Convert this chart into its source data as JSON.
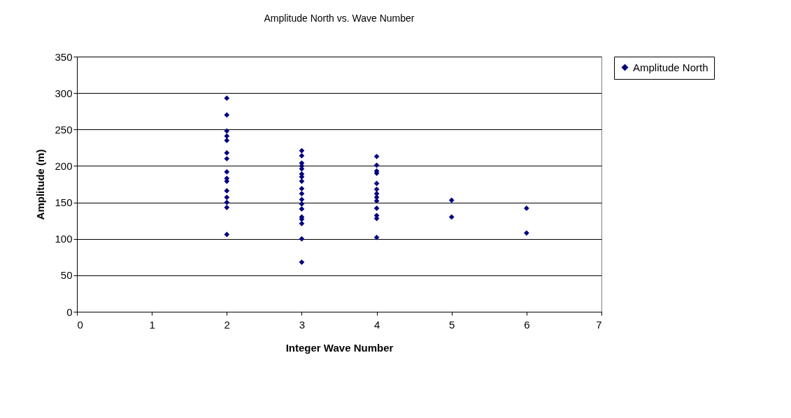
{
  "chart_data": {
    "type": "scatter",
    "title": "Amplitude North vs. Wave Number",
    "xlabel": "Integer Wave Number",
    "ylabel": "Amplitude (m)",
    "x": [
      2,
      2,
      2,
      2,
      2,
      2,
      2,
      2,
      2,
      2,
      2,
      2,
      2,
      2,
      2,
      3,
      3,
      3,
      3,
      3,
      3,
      3,
      3,
      3,
      3,
      3,
      3,
      3,
      3,
      3,
      3,
      3,
      3,
      4,
      4,
      4,
      4,
      4,
      4,
      4,
      4,
      4,
      4,
      4,
      4,
      4,
      5,
      5,
      6,
      6
    ],
    "series": [
      {
        "name": "Amplitude North",
        "color": "#000080",
        "values": [
          293,
          270,
          248,
          241,
          235,
          218,
          210,
          192,
          183,
          179,
          166,
          157,
          150,
          143,
          106,
          221,
          214,
          204,
          200,
          196,
          189,
          185,
          179,
          169,
          162,
          154,
          148,
          141,
          130,
          127,
          121,
          100,
          68,
          213,
          201,
          193,
          190,
          176,
          168,
          162,
          157,
          152,
          142,
          132,
          128,
          102,
          153,
          130,
          142,
          108
        ]
      }
    ],
    "xlim": [
      0,
      7
    ],
    "xticks": [
      0,
      1,
      2,
      3,
      4,
      5,
      6,
      7
    ],
    "ylim": [
      0,
      350
    ],
    "yticks": [
      0,
      50,
      100,
      150,
      200,
      250,
      300,
      350
    ],
    "grid": "y",
    "legend": "right",
    "marker": "diamond"
  }
}
